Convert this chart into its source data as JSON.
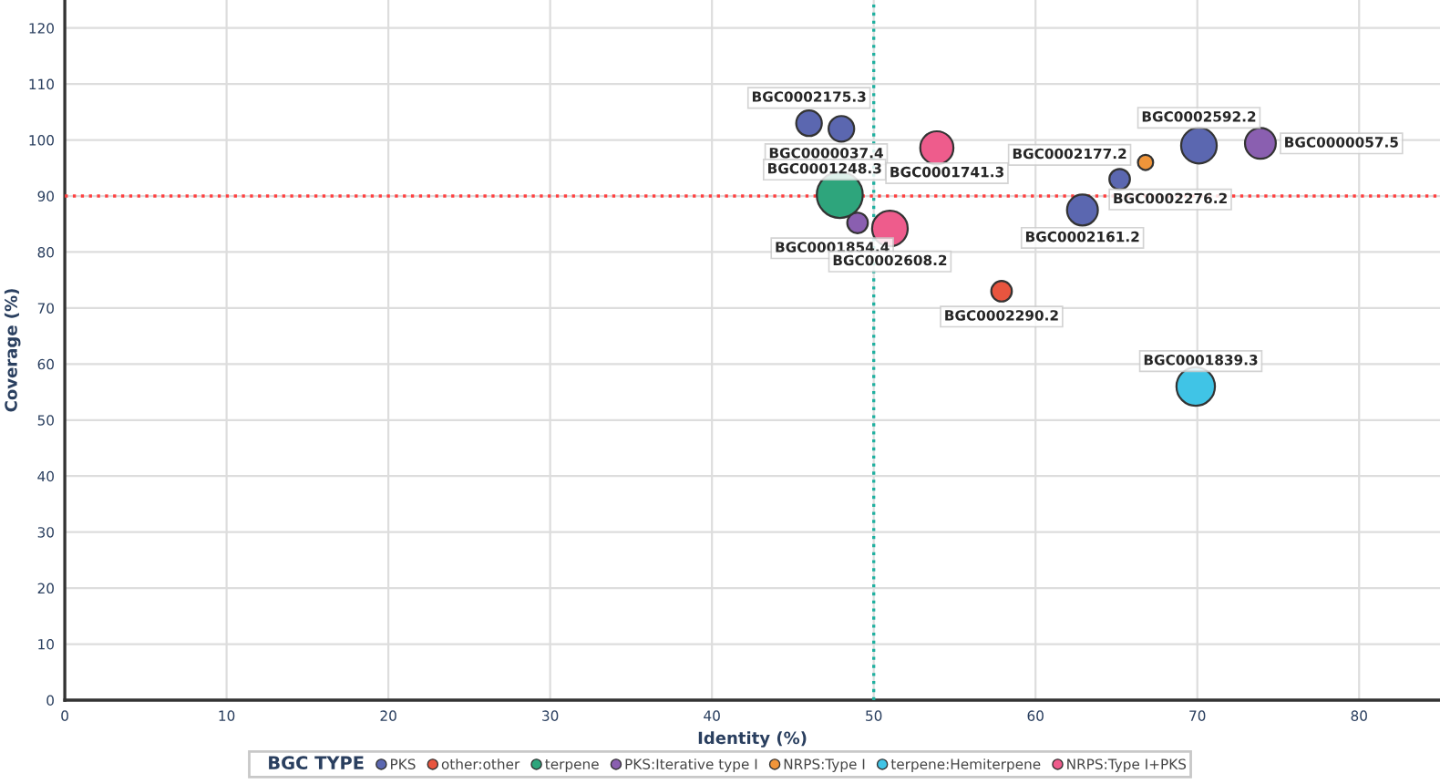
{
  "chart_data": {
    "type": "bubble",
    "xlabel": "Identity (%)",
    "ylabel": "Coverage (%)",
    "legend_title": "BGC TYPE",
    "xlim": [
      0,
      85
    ],
    "ylim": [
      0,
      125
    ],
    "xticks": [
      0,
      10,
      20,
      30,
      40,
      50,
      60,
      70,
      80
    ],
    "yticks": [
      0,
      10,
      20,
      30,
      40,
      50,
      60,
      70,
      80,
      90,
      100,
      110,
      120
    ],
    "grid": true,
    "legend": "bottom",
    "series": [
      {
        "name": "PKS",
        "color": "#5b67b0",
        "x": [
          46,
          48,
          70.1,
          65.2,
          62.9
        ],
        "values": [
          103,
          102,
          99,
          93,
          87.5
        ],
        "sizes": [
          0.31,
          0.31,
          0.6,
          0.2,
          0.45
        ]
      },
      {
        "name": "other:other",
        "color": "#e8553f",
        "x": [
          57.9
        ],
        "values": [
          73
        ],
        "sizes": [
          0.2
        ]
      },
      {
        "name": "terpene",
        "color": "#2ea57c",
        "x": [
          47.9
        ],
        "values": [
          90.2
        ],
        "sizes": [
          1
        ]
      },
      {
        "name": "PKS:Iterative type I",
        "color": "#8a5fb0",
        "x": [
          73.9,
          49
        ],
        "values": [
          99.4,
          85.2
        ],
        "sizes": [
          0.45,
          0.2
        ]
      },
      {
        "name": "NRPS:Type I",
        "color": "#f0953a",
        "x": [
          66.8
        ],
        "values": [
          96
        ],
        "sizes": [
          0.11
        ]
      },
      {
        "name": "terpene:Hemiterpene",
        "color": "#40c4e6",
        "x": [
          69.9
        ],
        "values": [
          56
        ],
        "sizes": [
          0.7
        ]
      },
      {
        "name": "NRPS:Type I+PKS",
        "color": "#ee5c8c",
        "x": [
          53.9,
          51
        ],
        "values": [
          98.6,
          84.2
        ],
        "sizes": [
          0.52,
          0.6
        ]
      }
    ],
    "annotations": [
      {
        "text": "BGC0002175.3",
        "x": 46,
        "y": 103
      },
      {
        "text": "BGC0000037.4",
        "x": 48,
        "y": 102
      },
      {
        "text": "BGC0002592.2",
        "x": 70.1,
        "y": 99
      },
      {
        "text": "BGC0002276.2",
        "x": 65.2,
        "y": 93
      },
      {
        "text": "BGC0002161.2",
        "x": 62.9,
        "y": 87.5
      },
      {
        "text": "BGC0002290.2",
        "x": 57.9,
        "y": 73
      },
      {
        "text": "BGC0001248.3",
        "x": 47.9,
        "y": 90.2
      },
      {
        "text": "BGC0000057.5",
        "x": 73.9,
        "y": 99.4
      },
      {
        "text": "BGC0001854.4",
        "x": 49,
        "y": 85.2
      },
      {
        "text": "BGC0002177.2",
        "x": 66.8,
        "y": 96
      },
      {
        "text": "BGC0001839.3",
        "x": 69.9,
        "y": 56
      },
      {
        "text": "BGC0001741.3",
        "x": 53.9,
        "y": 98.6
      },
      {
        "text": "BGC0002608.2",
        "x": 51,
        "y": 84.2
      }
    ],
    "ref_lines": [
      {
        "axis": "y",
        "value": 90,
        "color": "#ff4040",
        "line_style": "dotted"
      },
      {
        "axis": "x",
        "value": 50,
        "color": "#20b0a0",
        "line_style": "dotted"
      }
    ]
  }
}
